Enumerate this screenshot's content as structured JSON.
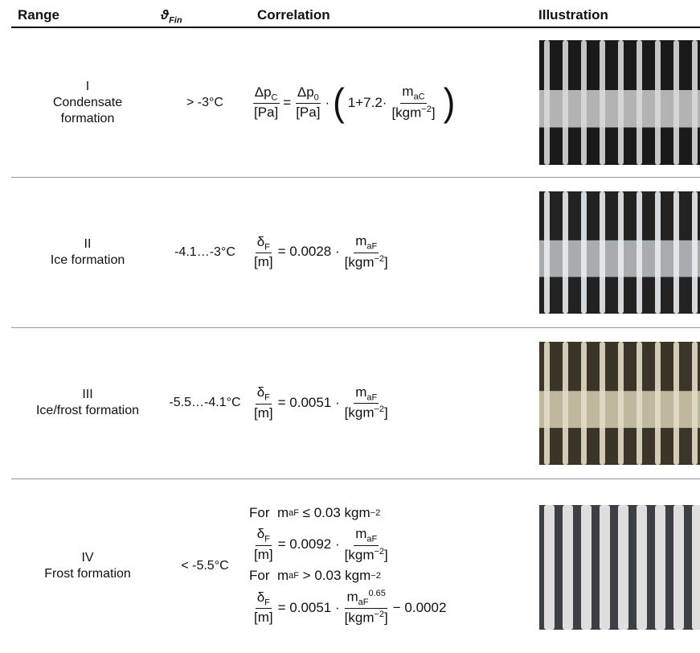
{
  "header": {
    "range": "Range",
    "theta": "ϑ",
    "theta_sub": "Fin",
    "correlation": "Correlation",
    "illustration": "Illustration"
  },
  "rows": [
    {
      "number": "I",
      "name_lines": [
        "Condensate",
        "formation"
      ],
      "temperature": "> -3°C",
      "correlation": [
        [
          {
            "frac": {
              "num": [
                "Δp",
                {
                  "sub": "C"
                }
              ],
              "den": [
                "[Pa]"
              ]
            }
          },
          "=",
          {
            "frac": {
              "num": [
                "Δp",
                {
                  "sub": "0"
                }
              ],
              "den": [
                "[Pa]"
              ]
            }
          },
          "·",
          "(",
          "1+7.2·",
          {
            "frac": {
              "num": [
                "m",
                {
                  "sub": "aC"
                }
              ],
              "den": [
                "[kgm",
                {
                  "sup": "−2"
                },
                "]"
              ]
            }
          },
          ")"
        ]
      ]
    },
    {
      "number": "II",
      "name_lines": [
        "Ice formation"
      ],
      "temperature": "-4.1…-3°C",
      "correlation": [
        [
          {
            "frac": {
              "num": [
                "δ",
                {
                  "sub": "F"
                }
              ],
              "den": [
                "[m]"
              ]
            }
          },
          "= 0.0028 ·",
          {
            "frac": {
              "num": [
                "m",
                {
                  "sub": "aF"
                }
              ],
              "den": [
                "[kgm",
                {
                  "sup": "−2"
                },
                "]"
              ]
            }
          }
        ]
      ]
    },
    {
      "number": "III",
      "name_lines": [
        "Ice/frost formation"
      ],
      "temperature": "-5.5…-4.1°C",
      "correlation": [
        [
          {
            "frac": {
              "num": [
                "δ",
                {
                  "sub": "F"
                }
              ],
              "den": [
                "[m]"
              ]
            }
          },
          "= 0.0051 ·",
          {
            "frac": {
              "num": [
                "m",
                {
                  "sub": "aF"
                }
              ],
              "den": [
                "[kgm",
                {
                  "sup": "−2"
                },
                "]"
              ]
            }
          }
        ]
      ]
    },
    {
      "number": "IV",
      "name_lines": [
        "Frost formation"
      ],
      "temperature": "< -5.5°C",
      "correlation": [
        [
          "For  m",
          {
            "sub": "aF"
          },
          " ≤ 0.03 kgm",
          {
            "sup": "−2"
          }
        ],
        [
          {
            "frac": {
              "num": [
                "δ",
                {
                  "sub": "F"
                }
              ],
              "den": [
                "[m]"
              ]
            }
          },
          "= 0.0092 ·",
          {
            "frac": {
              "num": [
                "m",
                {
                  "sub": "aF"
                }
              ],
              "den": [
                "[kgm",
                {
                  "sup": "−2"
                },
                "]"
              ]
            }
          }
        ],
        [
          "For  m",
          {
            "sub": "aF"
          },
          " > 0.03 kgm",
          {
            "sup": "−2"
          }
        ],
        [
          {
            "frac": {
              "num": [
                "δ",
                {
                  "sub": "F"
                }
              ],
              "den": [
                "[m]"
              ]
            }
          },
          "= 0.0051 ·",
          {
            "frac": {
              "num": [
                "m",
                {
                  "sub": "aF"
                },
                {
                  "sup": "0.65"
                }
              ],
              "den": [
                "[kgm",
                {
                  "sup": "−2"
                },
                "]"
              ]
            }
          },
          "− 0.0002"
        ]
      ]
    }
  ]
}
